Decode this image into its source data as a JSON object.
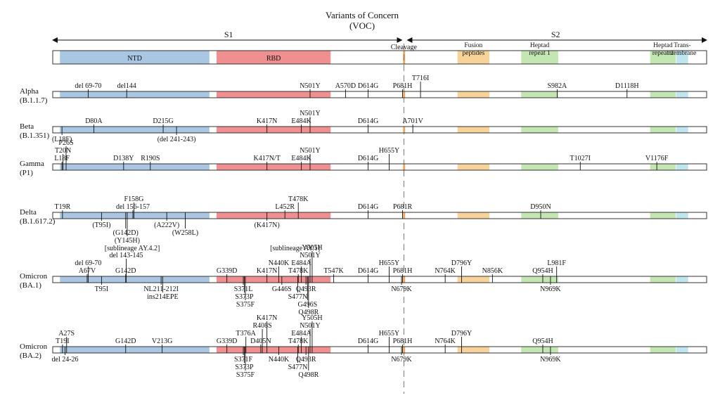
{
  "title_line1": "Variants of Concern",
  "title_line2": "(VOC)",
  "s1_label": "S1",
  "s2_label": "S2",
  "colors": {
    "ntd": "#a9c6e2",
    "rbd": "#ef8f8f",
    "cleavage": "#f0a85a",
    "fusion": "#f7d39a",
    "heptad1": "#c3e6b3",
    "heptad2": "#c3e6b3",
    "transmembrane": "#bfe6f0",
    "frame": "#333333"
  },
  "domains": [
    {
      "key": "ntd",
      "label": "NTD",
      "start": 14,
      "end": 305
    },
    {
      "key": "rbd",
      "label": "RBD",
      "start": 319,
      "end": 541
    },
    {
      "key": "cleavage",
      "label": "Cleavage",
      "start": 682,
      "end": 685
    },
    {
      "key": "fusion",
      "label": "Fusion peptides",
      "start": 788,
      "end": 850
    },
    {
      "key": "heptad1",
      "label": "Heptad repeat 1",
      "start": 912,
      "end": 984
    },
    {
      "key": "heptad2",
      "label": "Heptad repeat 2",
      "start": 1163,
      "end": 1213
    },
    {
      "key": "transmembrane",
      "label": "Trans-membrane",
      "start": 1214,
      "end": 1237
    }
  ],
  "variants": [
    {
      "name": "Alpha",
      "lineage": "(B.1.1.7)",
      "mutations": [
        {
          "label": "del 69-70",
          "pos": 69,
          "side": "above"
        },
        {
          "label": "del144",
          "pos": 144,
          "side": "above"
        },
        {
          "label": "N501Y",
          "pos": 501,
          "side": "above"
        },
        {
          "label": "A570D",
          "pos": 570,
          "side": "above"
        },
        {
          "label": "D614G",
          "pos": 614,
          "side": "above"
        },
        {
          "label": "P681H",
          "pos": 681,
          "side": "above"
        },
        {
          "label": "T716I",
          "pos": 716,
          "side": "above"
        },
        {
          "label": "S982A",
          "pos": 982,
          "side": "above"
        },
        {
          "label": "D1118H",
          "pos": 1118,
          "side": "above"
        }
      ]
    },
    {
      "name": "Beta",
      "lineage": "(B.1.351)",
      "mutations": [
        {
          "label": "D80A",
          "pos": 80,
          "side": "above"
        },
        {
          "label": "D215G",
          "pos": 215,
          "side": "above"
        },
        {
          "label": "K417N",
          "pos": 417,
          "side": "above"
        },
        {
          "label": "E484K",
          "pos": 484,
          "side": "above"
        },
        {
          "label": "N501Y",
          "pos": 501,
          "side": "above"
        },
        {
          "label": "D614G",
          "pos": 614,
          "side": "above"
        },
        {
          "label": "A701V",
          "pos": 701,
          "side": "above"
        },
        {
          "label": "(L18F)",
          "pos": 18,
          "side": "below"
        },
        {
          "label": "(del 241-243)",
          "pos": 241,
          "side": "below"
        }
      ]
    },
    {
      "name": "Gamma",
      "lineage": "(P1)",
      "mutations": [
        {
          "label": "L18F",
          "pos": 18,
          "side": "above"
        },
        {
          "label": "T20N",
          "pos": 20,
          "side": "above"
        },
        {
          "label": "P26S",
          "pos": 26,
          "side": "above"
        },
        {
          "label": "D138Y",
          "pos": 138,
          "side": "above"
        },
        {
          "label": "R190S",
          "pos": 190,
          "side": "above"
        },
        {
          "label": "K417N/T",
          "pos": 417,
          "side": "above"
        },
        {
          "label": "E484K",
          "pos": 484,
          "side": "above"
        },
        {
          "label": "N501Y",
          "pos": 501,
          "side": "above"
        },
        {
          "label": "D614G",
          "pos": 614,
          "side": "above"
        },
        {
          "label": "H655Y",
          "pos": 655,
          "side": "above"
        },
        {
          "label": "T1027I",
          "pos": 1027,
          "side": "above"
        },
        {
          "label": "V1176F",
          "pos": 1176,
          "side": "above"
        }
      ]
    },
    {
      "name": "Delta",
      "lineage": "(B.1.617.2)",
      "mutations": [
        {
          "label": "T19R",
          "pos": 19,
          "side": "above"
        },
        {
          "label": "del 156-157",
          "pos": 156,
          "side": "above"
        },
        {
          "label": "F158G",
          "pos": 158,
          "side": "above"
        },
        {
          "label": "L452R",
          "pos": 452,
          "side": "above"
        },
        {
          "label": "T478K",
          "pos": 478,
          "side": "above"
        },
        {
          "label": "D614G",
          "pos": 614,
          "side": "above"
        },
        {
          "label": "P681R",
          "pos": 681,
          "side": "above"
        },
        {
          "label": "D950N",
          "pos": 950,
          "side": "above"
        },
        {
          "label": "(T95I)",
          "pos": 95,
          "side": "below"
        },
        {
          "label": "(G142D)",
          "pos": 142,
          "side": "below"
        },
        {
          "label": "(Y145H)",
          "pos": 145,
          "side": "below"
        },
        {
          "label": "(A222V)",
          "pos": 222,
          "side": "below"
        },
        {
          "label": "(W258L)",
          "pos": 258,
          "side": "below"
        },
        {
          "label": "(K417N)",
          "pos": 417,
          "side": "below"
        }
      ],
      "notes": [
        {
          "label": "[sublineage AY.4.2]",
          "pos": 100
        },
        {
          "label": "[sublineage AY.1]",
          "pos": 417
        }
      ]
    },
    {
      "name": "Omicron",
      "lineage": "(BA.1)",
      "mutations": [
        {
          "label": "A67V",
          "pos": 67,
          "side": "above"
        },
        {
          "label": "del 69-70",
          "pos": 69,
          "side": "above"
        },
        {
          "label": "G142D",
          "pos": 142,
          "side": "above"
        },
        {
          "label": "del 143-145",
          "pos": 143,
          "side": "above"
        },
        {
          "label": "G339D",
          "pos": 339,
          "side": "above"
        },
        {
          "label": "K417N",
          "pos": 417,
          "side": "above"
        },
        {
          "label": "N440K",
          "pos": 440,
          "side": "above"
        },
        {
          "label": "T478K",
          "pos": 478,
          "side": "above"
        },
        {
          "label": "E484A",
          "pos": 484,
          "side": "above"
        },
        {
          "label": "N501Y",
          "pos": 501,
          "side": "above"
        },
        {
          "label": "Y505H",
          "pos": 505,
          "side": "above"
        },
        {
          "label": "T547K",
          "pos": 547,
          "side": "above"
        },
        {
          "label": "D614G",
          "pos": 614,
          "side": "above"
        },
        {
          "label": "H655Y",
          "pos": 655,
          "side": "above"
        },
        {
          "label": "P681H",
          "pos": 681,
          "side": "above"
        },
        {
          "label": "N764K",
          "pos": 764,
          "side": "above"
        },
        {
          "label": "D796Y",
          "pos": 796,
          "side": "above"
        },
        {
          "label": "N856K",
          "pos": 856,
          "side": "above"
        },
        {
          "label": "Q954H",
          "pos": 954,
          "side": "above"
        },
        {
          "label": "L981F",
          "pos": 981,
          "side": "above"
        },
        {
          "label": "T95I",
          "pos": 95,
          "side": "below"
        },
        {
          "label": "ins214EPE",
          "pos": 214,
          "side": "below"
        },
        {
          "label": "NL211-212I",
          "pos": 211,
          "side": "below"
        },
        {
          "label": "S371L",
          "pos": 371,
          "side": "below"
        },
        {
          "label": "S373P",
          "pos": 373,
          "side": "below"
        },
        {
          "label": "S375F",
          "pos": 375,
          "side": "below"
        },
        {
          "label": "G446S",
          "pos": 446,
          "side": "below"
        },
        {
          "label": "S477N",
          "pos": 477,
          "side": "below"
        },
        {
          "label": "Q493R",
          "pos": 493,
          "side": "below"
        },
        {
          "label": "G496S",
          "pos": 496,
          "side": "below"
        },
        {
          "label": "Q498R",
          "pos": 498,
          "side": "below"
        },
        {
          "label": "N679K",
          "pos": 679,
          "side": "below"
        },
        {
          "label": "N969K",
          "pos": 969,
          "side": "below"
        }
      ]
    },
    {
      "name": "Omicron",
      "lineage": "(BA.2)",
      "mutations": [
        {
          "label": "T19I",
          "pos": 19,
          "side": "above"
        },
        {
          "label": "A27S",
          "pos": 27,
          "side": "above"
        },
        {
          "label": "G142D",
          "pos": 142,
          "side": "above"
        },
        {
          "label": "V213G",
          "pos": 213,
          "side": "above"
        },
        {
          "label": "G339D",
          "pos": 339,
          "side": "above"
        },
        {
          "label": "T376A",
          "pos": 376,
          "side": "above"
        },
        {
          "label": "D405N",
          "pos": 405,
          "side": "above"
        },
        {
          "label": "R408S",
          "pos": 408,
          "side": "above"
        },
        {
          "label": "K417N",
          "pos": 417,
          "side": "above"
        },
        {
          "label": "T478K",
          "pos": 478,
          "side": "above"
        },
        {
          "label": "E484A",
          "pos": 484,
          "side": "above"
        },
        {
          "label": "N501Y",
          "pos": 501,
          "side": "above"
        },
        {
          "label": "Y505H",
          "pos": 505,
          "side": "above"
        },
        {
          "label": "D614G",
          "pos": 614,
          "side": "above"
        },
        {
          "label": "H655Y",
          "pos": 655,
          "side": "above"
        },
        {
          "label": "P681H",
          "pos": 681,
          "side": "above"
        },
        {
          "label": "N764K",
          "pos": 764,
          "side": "above"
        },
        {
          "label": "D796Y",
          "pos": 796,
          "side": "above"
        },
        {
          "label": "Q954H",
          "pos": 954,
          "side": "above"
        },
        {
          "label": "del 24-26",
          "pos": 24,
          "side": "below"
        },
        {
          "label": "S371F",
          "pos": 371,
          "side": "below"
        },
        {
          "label": "S373P",
          "pos": 373,
          "side": "below"
        },
        {
          "label": "S375F",
          "pos": 375,
          "side": "below"
        },
        {
          "label": "N440K",
          "pos": 440,
          "side": "below"
        },
        {
          "label": "S477N",
          "pos": 477,
          "side": "below"
        },
        {
          "label": "Q493R",
          "pos": 493,
          "side": "below"
        },
        {
          "label": "Q498R",
          "pos": 498,
          "side": "below"
        },
        {
          "label": "N679K",
          "pos": 679,
          "side": "below"
        },
        {
          "label": "N969K",
          "pos": 969,
          "side": "below"
        }
      ]
    }
  ]
}
